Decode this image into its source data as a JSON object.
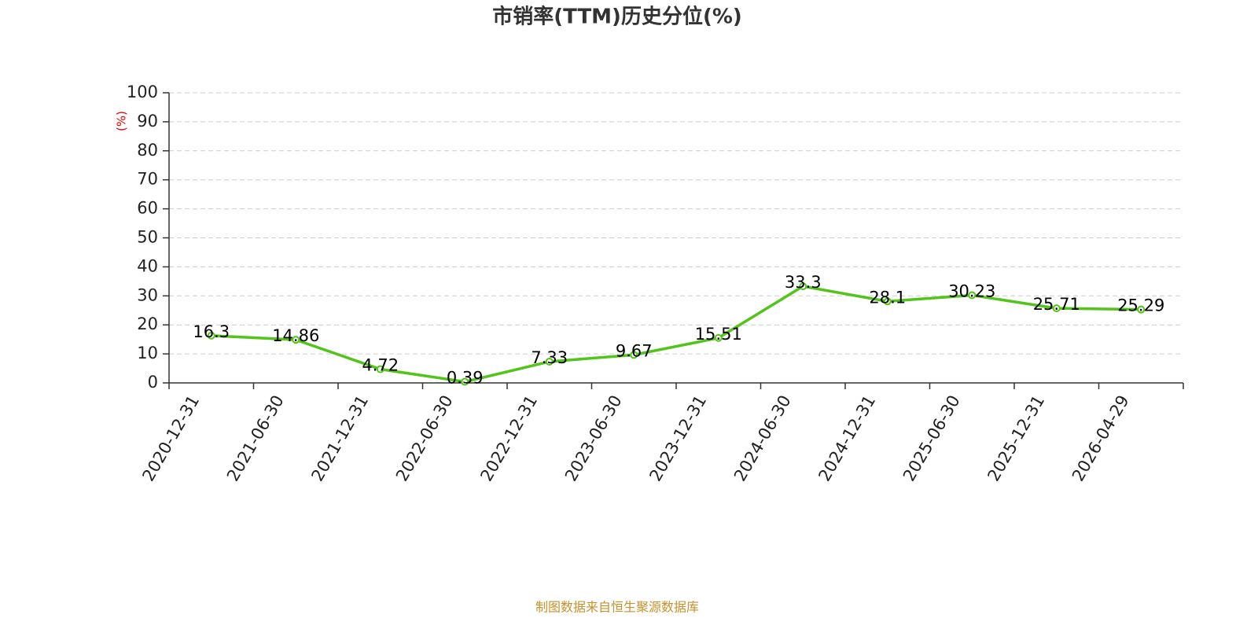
{
  "chart_data": {
    "type": "line",
    "title": "市销率(TTM)历史分位(%)",
    "y_label": "(%)",
    "source": "制图数据来自恒生聚源数据库",
    "categories": [
      "2020-12-31",
      "2021-06-30",
      "2021-12-31",
      "2022-06-30",
      "2022-12-31",
      "2023-06-30",
      "2023-12-31",
      "2024-06-30",
      "2024-12-31",
      "2025-06-30",
      "2025-12-31",
      "2026-04-29"
    ],
    "values": [
      16.3,
      14.86,
      4.72,
      0.39,
      7.33,
      9.67,
      15.51,
      33.3,
      28.1,
      30.23,
      25.71,
      25.29
    ],
    "color": "#52c41a",
    "ylim": [
      0,
      100
    ],
    "yticks": [
      0,
      10,
      20,
      30,
      40,
      50,
      60,
      70,
      80,
      90,
      100
    ],
    "grid": true
  }
}
